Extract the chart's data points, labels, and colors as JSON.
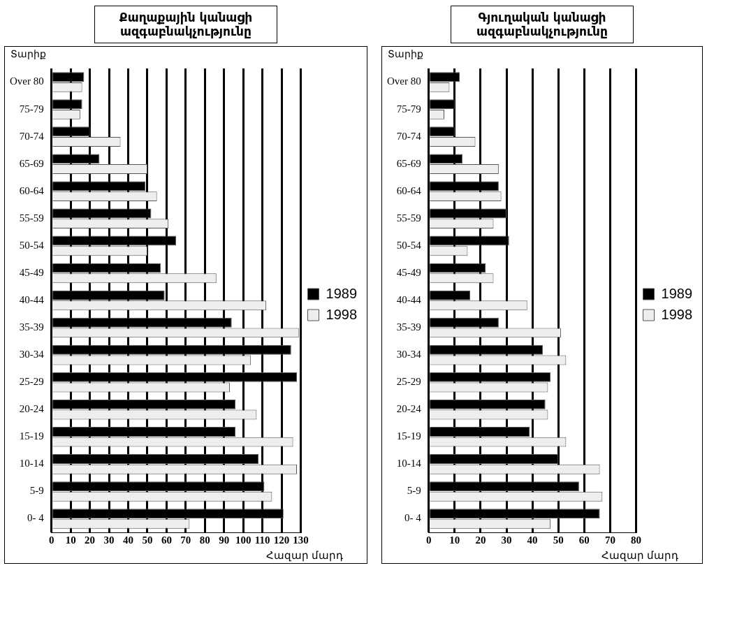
{
  "chart_data": [
    {
      "type": "bar",
      "orientation": "horizontal",
      "title": "Քաղաքային կանացի ազգաբնակչությունը",
      "ylabel": "Տարիք",
      "xlabel": "Հազար մարդ",
      "categories": [
        "Over 80",
        "75-79",
        "70-74",
        "65-69",
        "60-64",
        "55-59",
        "50-54",
        "45-49",
        "40-44",
        "35-39",
        "30-34",
        "25-29",
        "20-24",
        "15-19",
        "10-14",
        "5-9",
        "0- 4"
      ],
      "series": [
        {
          "name": "1989",
          "color": "#000000",
          "values": [
            17,
            16,
            20,
            25,
            49,
            52,
            65,
            57,
            59,
            94,
            125,
            128,
            96,
            96,
            108,
            111,
            121
          ]
        },
        {
          "name": "1998",
          "color": "#eeeeee",
          "values": [
            16,
            15,
            36,
            50,
            55,
            61,
            50,
            86,
            112,
            129,
            104,
            93,
            107,
            126,
            128,
            115,
            72
          ]
        }
      ],
      "xlim": [
        0,
        130
      ],
      "xticks": [
        0,
        10,
        20,
        30,
        40,
        50,
        60,
        70,
        80,
        90,
        100,
        110,
        120,
        130
      ],
      "grid": "x",
      "legend": "right"
    },
    {
      "type": "bar",
      "orientation": "horizontal",
      "title": "Գյուղական կանացի ազգաբնակչությունը",
      "ylabel": "Տարիք",
      "xlabel": "Հազար մարդ",
      "categories": [
        "Over 80",
        "75-79",
        "70-74",
        "65-69",
        "60-64",
        "55-59",
        "50-54",
        "45-49",
        "40-44",
        "35-39",
        "30-34",
        "25-29",
        "20-24",
        "15-19",
        "10-14",
        "5-9",
        "0- 4"
      ],
      "series": [
        {
          "name": "1989",
          "color": "#000000",
          "values": [
            12,
            10,
            10,
            13,
            27,
            30,
            31,
            22,
            16,
            27,
            44,
            47,
            45,
            39,
            50,
            58,
            66
          ]
        },
        {
          "name": "1998",
          "color": "#eeeeee",
          "values": [
            8,
            6,
            18,
            27,
            28,
            25,
            15,
            25,
            38,
            51,
            53,
            46,
            46,
            53,
            66,
            67,
            47
          ]
        }
      ],
      "xlim": [
        0,
        80
      ],
      "xticks": [
        0,
        10,
        20,
        30,
        40,
        50,
        60,
        70,
        80
      ],
      "grid": "x",
      "legend": "right"
    }
  ]
}
